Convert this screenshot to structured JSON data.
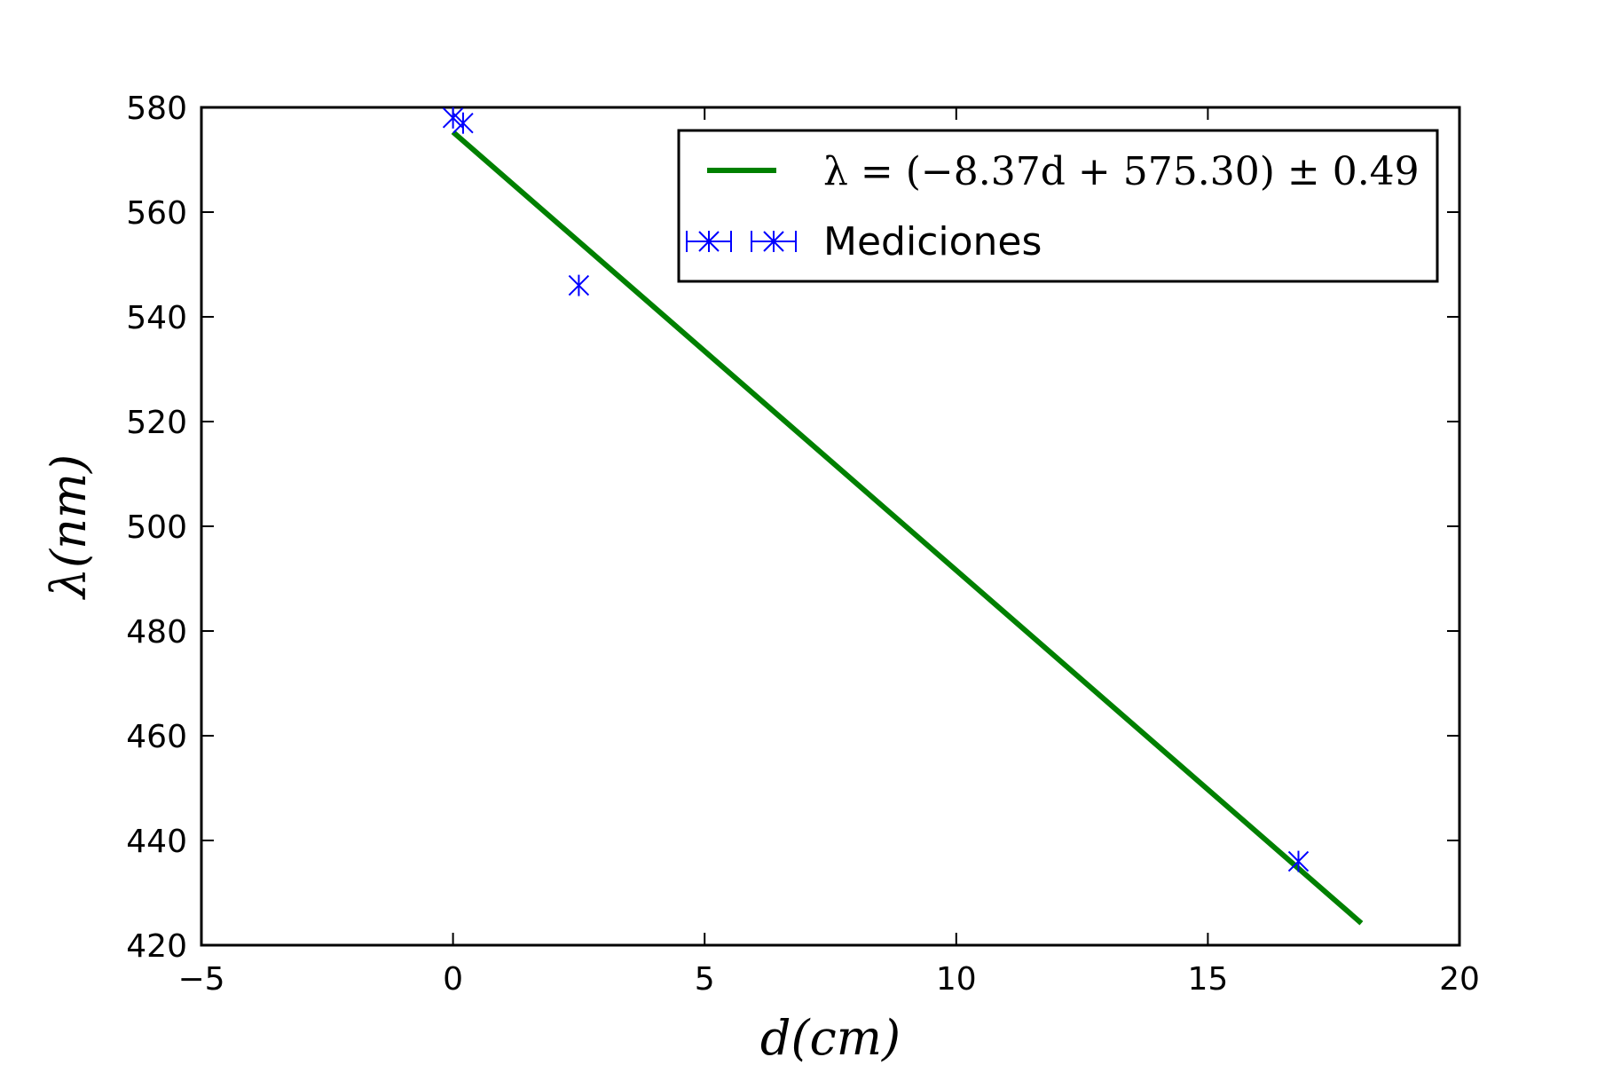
{
  "chart_data": {
    "type": "scatter",
    "xlabel": "d(cm)",
    "ylabel": "λ(nm)",
    "xlim": [
      -5,
      20
    ],
    "ylim": [
      420,
      580
    ],
    "xticks": [
      -5,
      0,
      5,
      10,
      15,
      20
    ],
    "yticks": [
      420,
      440,
      460,
      480,
      500,
      520,
      540,
      560,
      580
    ],
    "xtick_labels": [
      "−5",
      "0",
      "5",
      "10",
      "15",
      "20"
    ],
    "ytick_labels": [
      "420",
      "440",
      "460",
      "480",
      "500",
      "520",
      "540",
      "560",
      "580"
    ],
    "grid": false,
    "legend_position": "top-right",
    "series": [
      {
        "name": "λ = (−8.37d + 575.30) ± 0.49",
        "kind": "line",
        "color": "#008000",
        "x": [
          0,
          18.05
        ],
        "y": [
          575.3,
          424.2
        ]
      },
      {
        "name": "Mediciones",
        "kind": "errorbar-points",
        "marker": "x-star",
        "color": "#0000ff",
        "x": [
          0.0,
          0.2,
          2.5,
          16.8
        ],
        "y": [
          578.0,
          577.0,
          546.0,
          436.0
        ]
      }
    ]
  }
}
